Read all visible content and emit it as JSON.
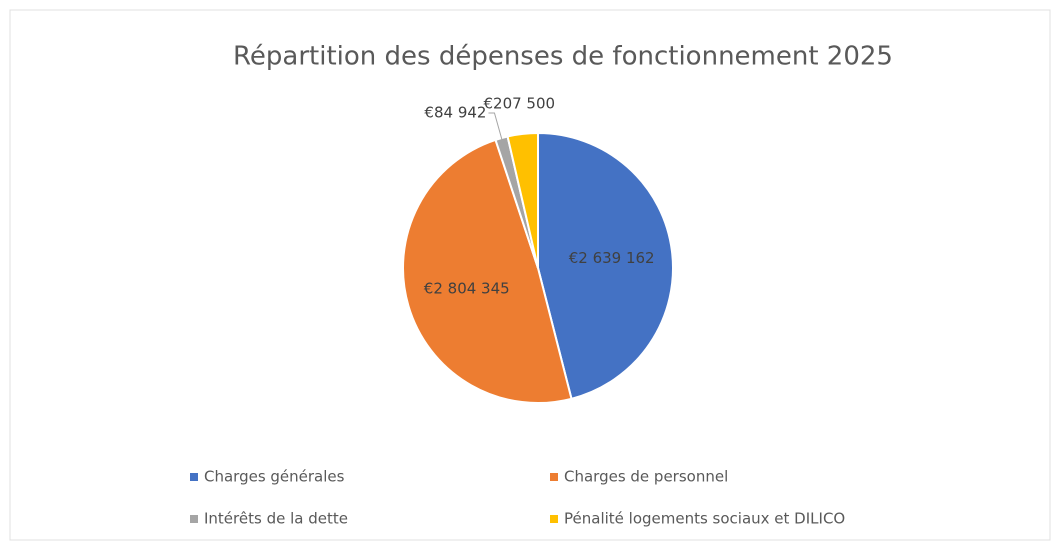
{
  "chart_data": {
    "type": "pie",
    "title": "Répartition des dépenses de fonctionnement 2025",
    "categories": [
      "Charges générales",
      "Charges de personnel",
      "Intérêts de la dette",
      "Pénalité logements sociaux et DILICO"
    ],
    "values": [
      2639162,
      2804345,
      84942,
      207500
    ],
    "value_labels": [
      "€2 639 162",
      "€2 804 345",
      "€84 942",
      "€207 500"
    ],
    "colors": [
      "#4472c4",
      "#ed7d31",
      "#a5a5a5",
      "#ffc000"
    ],
    "legend": "bottom"
  }
}
